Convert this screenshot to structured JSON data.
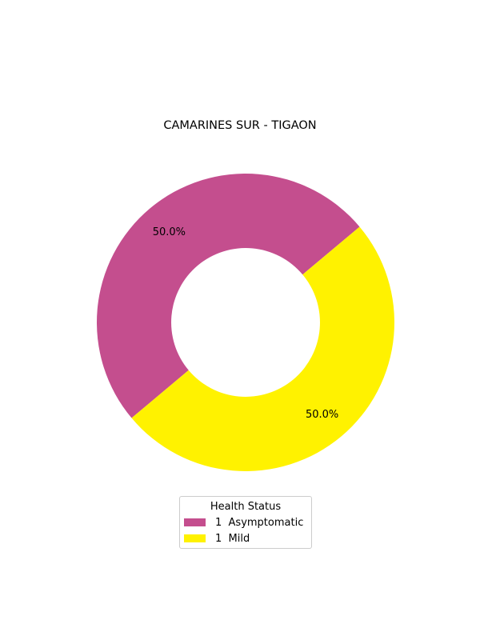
{
  "chart_data": {
    "type": "pie",
    "variant": "donut",
    "title": "CAMARINES SUR - TIGAON",
    "slices": [
      {
        "label": "1  Asymptomatic",
        "value": 1,
        "percent_label": "50.0%",
        "color": "#c44e8e"
      },
      {
        "label": "1  Mild",
        "value": 1,
        "percent_label": "50.0%",
        "color": "#fff200"
      }
    ],
    "legend": {
      "title": "Health Status",
      "placement": "bottom-center"
    }
  }
}
